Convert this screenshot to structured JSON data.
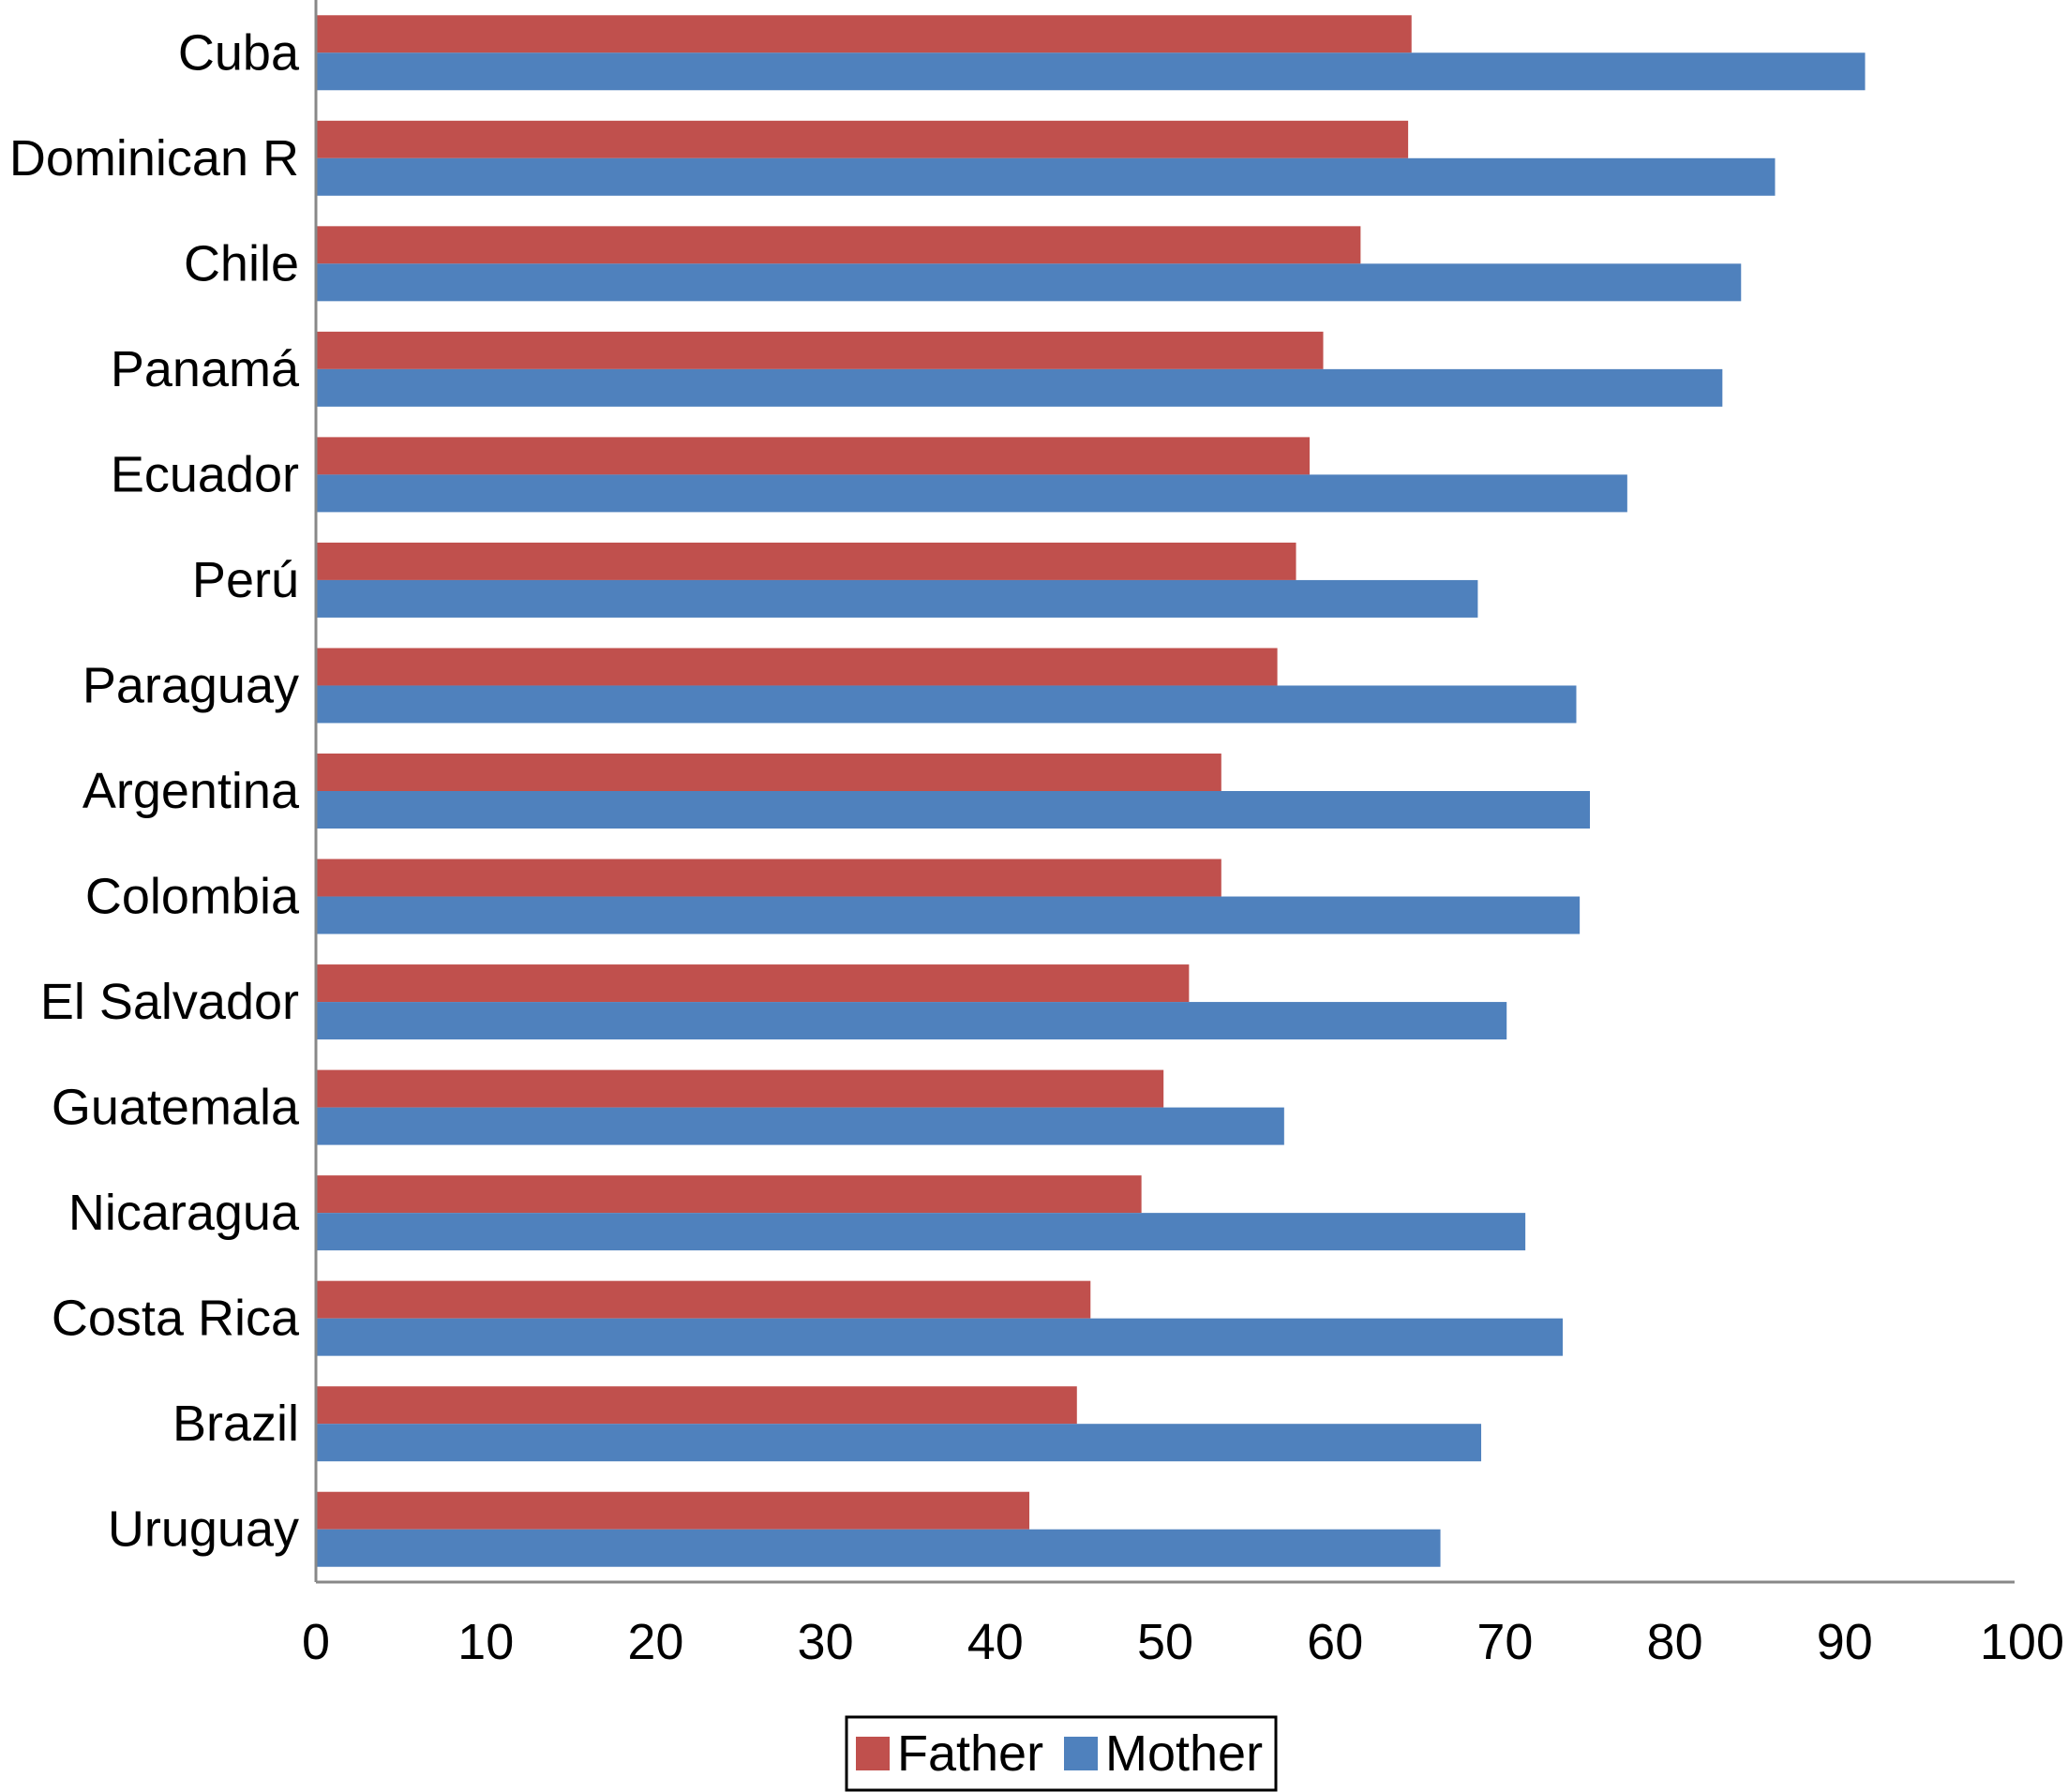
{
  "chart_data": {
    "type": "bar",
    "orientation": "horizontal",
    "categories": [
      "Cuba",
      "Dominican R",
      "Chile",
      "Panamá",
      "Ecuador",
      "Perú",
      "Paraguay",
      "Argentina",
      "Colombia",
      "El Salvador",
      "Guatemala",
      "Nicaragua",
      "Costa Rica",
      "Brazil",
      "Uruguay"
    ],
    "series": [
      {
        "name": "Father",
        "color": "#c0504d",
        "values": [
          64.5,
          64.3,
          61.5,
          59.3,
          58.5,
          57.7,
          56.6,
          53.3,
          53.3,
          51.4,
          49.9,
          48.6,
          45.6,
          44.8,
          42.0
        ]
      },
      {
        "name": "Mother",
        "color": "#4f81bd",
        "values": [
          91.2,
          85.9,
          83.9,
          82.8,
          77.2,
          68.4,
          74.2,
          75.0,
          74.4,
          70.1,
          57.0,
          71.2,
          73.4,
          68.6,
          66.2
        ]
      }
    ],
    "xlim": [
      0,
      100
    ],
    "xticks": [
      "0",
      "10",
      "20",
      "30",
      "40",
      "50",
      "60",
      "70",
      "80",
      "90",
      "100"
    ],
    "title": "",
    "xlabel": "",
    "ylabel": "",
    "grid": false,
    "legend_position": "bottom"
  }
}
